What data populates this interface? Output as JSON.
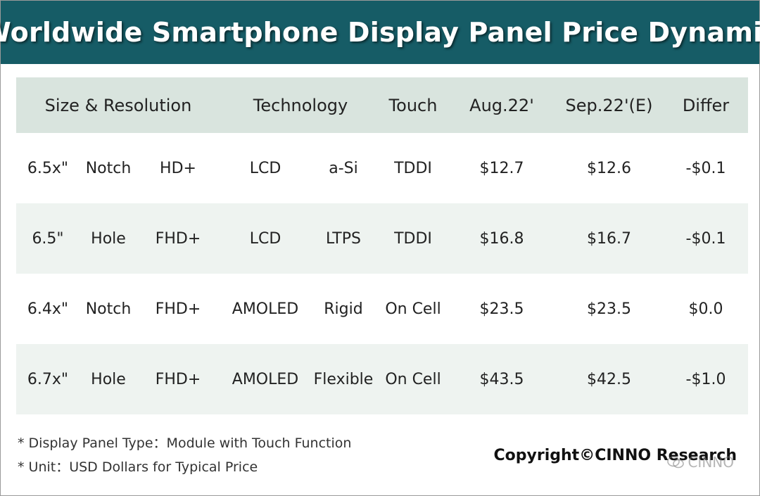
{
  "title": "Worldwide Smartphone Display Panel Price Dynamic",
  "colors": {
    "title_bar": "#165c66",
    "header_row": "#d9e4de",
    "shaded_row": "#eef3f0"
  },
  "chart_data": {
    "type": "table",
    "title": "Worldwide Smartphone Display Panel Price Dynamic",
    "columns": [
      "Size & Resolution",
      "Technology",
      "Touch",
      "Aug.22'",
      "Sep.22'(E)",
      "Differ"
    ],
    "rows": [
      {
        "size": "6.5x\"",
        "form": "Notch",
        "res": "HD+",
        "display": "LCD",
        "backplane": "a-Si",
        "touch": "TDDI",
        "aug": "$12.7",
        "sep": "$12.6",
        "differ": "-$0.1"
      },
      {
        "size": "6.5\"",
        "form": "Hole",
        "res": "FHD+",
        "display": "LCD",
        "backplane": "LTPS",
        "touch": "TDDI",
        "aug": "$16.8",
        "sep": "$16.7",
        "differ": "-$0.1"
      },
      {
        "size": "6.4x\"",
        "form": "Notch",
        "res": "FHD+",
        "display": "AMOLED",
        "backplane": "Rigid",
        "touch": "On Cell",
        "aug": "$23.5",
        "sep": "$23.5",
        "differ": "$0.0"
      },
      {
        "size": "6.7x\"",
        "form": "Hole",
        "res": "FHD+",
        "display": "AMOLED",
        "backplane": "Flexible",
        "touch": "On Cell",
        "aug": "$43.5",
        "sep": "$42.5",
        "differ": "-$1.0"
      }
    ],
    "values_usd": {
      "aug_22": [
        12.7,
        16.8,
        23.5,
        43.5
      ],
      "sep_22_e": [
        12.6,
        16.7,
        23.5,
        42.5
      ],
      "differ": [
        -0.1,
        -0.1,
        0.0,
        -1.0
      ]
    }
  },
  "notes": [
    "* Display Panel Type：Module with Touch Function",
    "* Unit：USD Dollars for Typical Price"
  ],
  "copyright": "Copyright©CINNO Research",
  "watermark": "CINNO"
}
